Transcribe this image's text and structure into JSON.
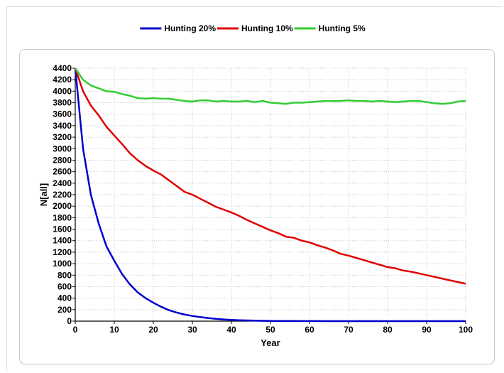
{
  "chart_data": {
    "type": "line",
    "title": "",
    "xlabel": "Year",
    "ylabel": "N[all]",
    "xlim": [
      0,
      100
    ],
    "ylim": [
      0,
      4400
    ],
    "x_ticks": [
      0,
      10,
      20,
      30,
      40,
      50,
      60,
      70,
      80,
      90,
      100
    ],
    "y_ticks": [
      0,
      200,
      400,
      600,
      800,
      1000,
      1200,
      1400,
      1600,
      1800,
      2000,
      2200,
      2400,
      2600,
      2800,
      3000,
      3200,
      3400,
      3600,
      3800,
      4000,
      4200,
      4400
    ],
    "grid": true,
    "legend_position": "top-center",
    "x": [
      0,
      2,
      4,
      6,
      8,
      10,
      12,
      14,
      16,
      18,
      20,
      22,
      24,
      26,
      28,
      30,
      32,
      34,
      36,
      38,
      40,
      42,
      44,
      46,
      48,
      50,
      52,
      54,
      56,
      58,
      60,
      62,
      64,
      66,
      68,
      70,
      72,
      74,
      76,
      78,
      80,
      82,
      84,
      86,
      88,
      90,
      92,
      94,
      96,
      98,
      100
    ],
    "series": [
      {
        "name": "Hunting 20%",
        "color": "#0000cc",
        "values": [
          4400,
          3000,
          2200,
          1700,
          1300,
          1050,
          820,
          640,
          500,
          400,
          320,
          250,
          190,
          150,
          115,
          90,
          70,
          55,
          40,
          30,
          22,
          16,
          12,
          9,
          6,
          4,
          3,
          2,
          2,
          1,
          1,
          1,
          0,
          0,
          0,
          0,
          0,
          0,
          0,
          0,
          0,
          0,
          0,
          0,
          0,
          0,
          0,
          0,
          0,
          0,
          0
        ]
      },
      {
        "name": "Hunting 10%",
        "color": "#e00000",
        "values": [
          4400,
          4000,
          3750,
          3580,
          3380,
          3230,
          3080,
          2920,
          2800,
          2700,
          2620,
          2550,
          2450,
          2350,
          2250,
          2200,
          2130,
          2060,
          1990,
          1940,
          1890,
          1830,
          1760,
          1700,
          1640,
          1580,
          1530,
          1470,
          1450,
          1400,
          1370,
          1320,
          1280,
          1230,
          1170,
          1140,
          1100,
          1060,
          1020,
          980,
          940,
          920,
          880,
          860,
          830,
          800,
          770,
          740,
          710,
          680,
          650
        ]
      },
      {
        "name": "Hunting 5%",
        "color": "#33cc33",
        "values": [
          4400,
          4200,
          4100,
          4050,
          4000,
          3990,
          3950,
          3920,
          3880,
          3870,
          3880,
          3870,
          3870,
          3850,
          3830,
          3820,
          3840,
          3840,
          3820,
          3830,
          3820,
          3820,
          3830,
          3810,
          3830,
          3800,
          3790,
          3780,
          3800,
          3800,
          3810,
          3820,
          3830,
          3830,
          3830,
          3840,
          3830,
          3830,
          3820,
          3830,
          3820,
          3810,
          3820,
          3830,
          3830,
          3810,
          3790,
          3780,
          3790,
          3820,
          3830
        ]
      }
    ]
  }
}
